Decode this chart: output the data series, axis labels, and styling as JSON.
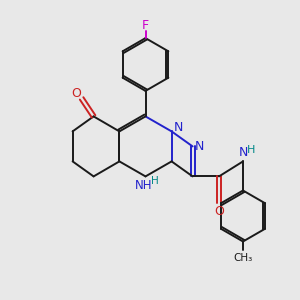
{
  "background_color": "#e8e8e8",
  "bond_color": "#1a1a1a",
  "N_color": "#2222cc",
  "O_color": "#cc2222",
  "F_color": "#cc00cc",
  "H_color": "#008888",
  "figsize": [
    3.0,
    3.0
  ],
  "dpi": 100,
  "xlim": [
    0,
    10
  ],
  "ylim": [
    0,
    10
  ]
}
